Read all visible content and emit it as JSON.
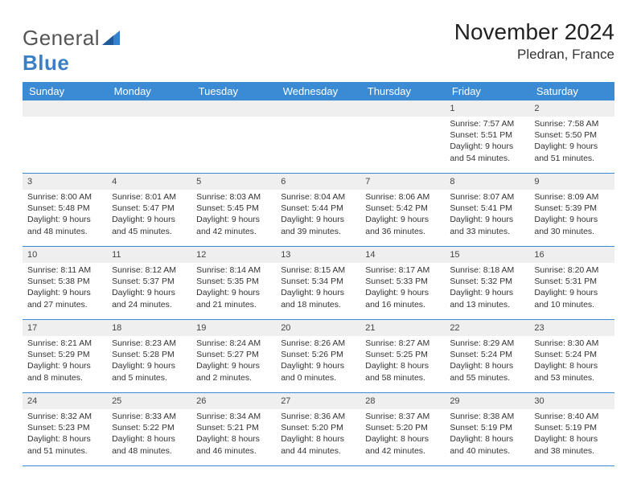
{
  "brand": {
    "text1": "General",
    "text2": "Blue"
  },
  "title": "November 2024",
  "location": "Pledran, France",
  "colors": {
    "header_bg": "#3b8bd4",
    "header_fg": "#ffffff",
    "daynum_bg": "#efefef",
    "rule": "#3b8bd4",
    "text": "#333333"
  },
  "day_headers": [
    "Sunday",
    "Monday",
    "Tuesday",
    "Wednesday",
    "Thursday",
    "Friday",
    "Saturday"
  ],
  "weeks": [
    {
      "nums": [
        "",
        "",
        "",
        "",
        "",
        "1",
        "2"
      ],
      "cells": [
        null,
        null,
        null,
        null,
        null,
        {
          "sunrise": "7:57 AM",
          "sunset": "5:51 PM",
          "daylight": "9 hours and 54 minutes."
        },
        {
          "sunrise": "7:58 AM",
          "sunset": "5:50 PM",
          "daylight": "9 hours and 51 minutes."
        }
      ]
    },
    {
      "nums": [
        "3",
        "4",
        "5",
        "6",
        "7",
        "8",
        "9"
      ],
      "cells": [
        {
          "sunrise": "8:00 AM",
          "sunset": "5:48 PM",
          "daylight": "9 hours and 48 minutes."
        },
        {
          "sunrise": "8:01 AM",
          "sunset": "5:47 PM",
          "daylight": "9 hours and 45 minutes."
        },
        {
          "sunrise": "8:03 AM",
          "sunset": "5:45 PM",
          "daylight": "9 hours and 42 minutes."
        },
        {
          "sunrise": "8:04 AM",
          "sunset": "5:44 PM",
          "daylight": "9 hours and 39 minutes."
        },
        {
          "sunrise": "8:06 AM",
          "sunset": "5:42 PM",
          "daylight": "9 hours and 36 minutes."
        },
        {
          "sunrise": "8:07 AM",
          "sunset": "5:41 PM",
          "daylight": "9 hours and 33 minutes."
        },
        {
          "sunrise": "8:09 AM",
          "sunset": "5:39 PM",
          "daylight": "9 hours and 30 minutes."
        }
      ]
    },
    {
      "nums": [
        "10",
        "11",
        "12",
        "13",
        "14",
        "15",
        "16"
      ],
      "cells": [
        {
          "sunrise": "8:11 AM",
          "sunset": "5:38 PM",
          "daylight": "9 hours and 27 minutes."
        },
        {
          "sunrise": "8:12 AM",
          "sunset": "5:37 PM",
          "daylight": "9 hours and 24 minutes."
        },
        {
          "sunrise": "8:14 AM",
          "sunset": "5:35 PM",
          "daylight": "9 hours and 21 minutes."
        },
        {
          "sunrise": "8:15 AM",
          "sunset": "5:34 PM",
          "daylight": "9 hours and 18 minutes."
        },
        {
          "sunrise": "8:17 AM",
          "sunset": "5:33 PM",
          "daylight": "9 hours and 16 minutes."
        },
        {
          "sunrise": "8:18 AM",
          "sunset": "5:32 PM",
          "daylight": "9 hours and 13 minutes."
        },
        {
          "sunrise": "8:20 AM",
          "sunset": "5:31 PM",
          "daylight": "9 hours and 10 minutes."
        }
      ]
    },
    {
      "nums": [
        "17",
        "18",
        "19",
        "20",
        "21",
        "22",
        "23"
      ],
      "cells": [
        {
          "sunrise": "8:21 AM",
          "sunset": "5:29 PM",
          "daylight": "9 hours and 8 minutes."
        },
        {
          "sunrise": "8:23 AM",
          "sunset": "5:28 PM",
          "daylight": "9 hours and 5 minutes."
        },
        {
          "sunrise": "8:24 AM",
          "sunset": "5:27 PM",
          "daylight": "9 hours and 2 minutes."
        },
        {
          "sunrise": "8:26 AM",
          "sunset": "5:26 PM",
          "daylight": "9 hours and 0 minutes."
        },
        {
          "sunrise": "8:27 AM",
          "sunset": "5:25 PM",
          "daylight": "8 hours and 58 minutes."
        },
        {
          "sunrise": "8:29 AM",
          "sunset": "5:24 PM",
          "daylight": "8 hours and 55 minutes."
        },
        {
          "sunrise": "8:30 AM",
          "sunset": "5:24 PM",
          "daylight": "8 hours and 53 minutes."
        }
      ]
    },
    {
      "nums": [
        "24",
        "25",
        "26",
        "27",
        "28",
        "29",
        "30"
      ],
      "cells": [
        {
          "sunrise": "8:32 AM",
          "sunset": "5:23 PM",
          "daylight": "8 hours and 51 minutes."
        },
        {
          "sunrise": "8:33 AM",
          "sunset": "5:22 PM",
          "daylight": "8 hours and 48 minutes."
        },
        {
          "sunrise": "8:34 AM",
          "sunset": "5:21 PM",
          "daylight": "8 hours and 46 minutes."
        },
        {
          "sunrise": "8:36 AM",
          "sunset": "5:20 PM",
          "daylight": "8 hours and 44 minutes."
        },
        {
          "sunrise": "8:37 AM",
          "sunset": "5:20 PM",
          "daylight": "8 hours and 42 minutes."
        },
        {
          "sunrise": "8:38 AM",
          "sunset": "5:19 PM",
          "daylight": "8 hours and 40 minutes."
        },
        {
          "sunrise": "8:40 AM",
          "sunset": "5:19 PM",
          "daylight": "8 hours and 38 minutes."
        }
      ]
    }
  ],
  "labels": {
    "sunrise": "Sunrise: ",
    "sunset": "Sunset: ",
    "daylight": "Daylight: "
  }
}
